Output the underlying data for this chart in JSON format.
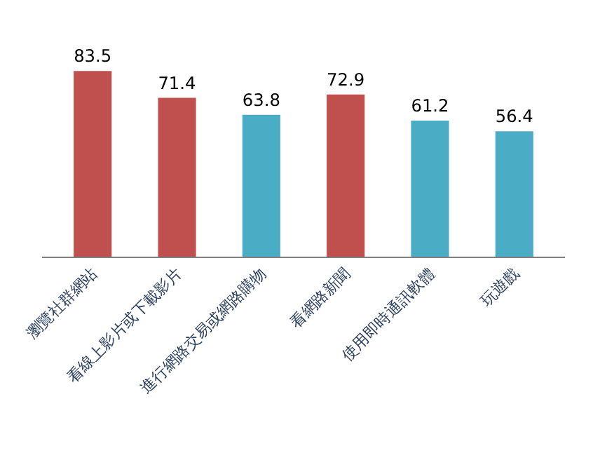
{
  "chart_data": {
    "type": "bar",
    "categories": [
      "瀏覽社群網站",
      "看線上影片或下載影片",
      "進行網路交易或網路購物",
      "看網路新聞",
      "使用即時通訊軟體",
      "玩遊戲"
    ],
    "values": [
      83.5,
      71.4,
      63.8,
      72.9,
      61.2,
      56.4
    ],
    "colors": [
      "#c0504d",
      "#c0504d",
      "#4bacc6",
      "#c0504d",
      "#4bacc6",
      "#4bacc6"
    ],
    "data_labels": true
  }
}
